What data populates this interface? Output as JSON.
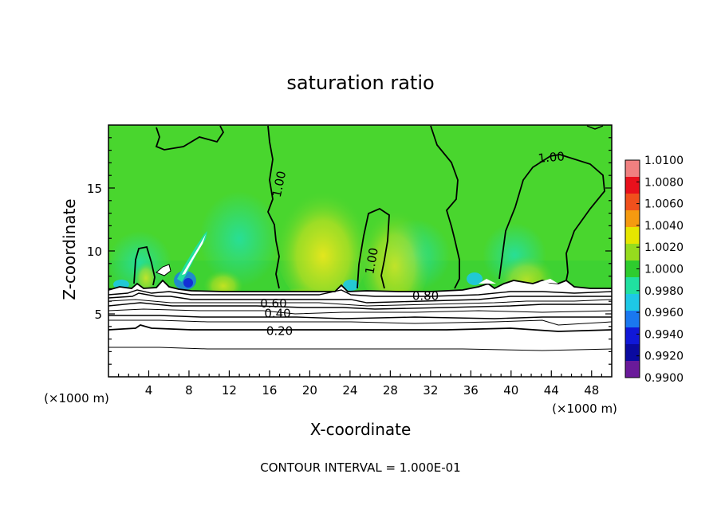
{
  "chart_data": {
    "type": "heatmap",
    "title": "saturation ratio",
    "xlabel": "X-coordinate",
    "ylabel": "Z-coordinate",
    "x_unit_left": "(×1000 m)",
    "x_unit_right": "(×1000 m)",
    "xlim": [
      0,
      50
    ],
    "ylim": [
      0,
      20
    ],
    "x_ticks": [
      4,
      8,
      12,
      16,
      20,
      24,
      28,
      32,
      36,
      40,
      44,
      48
    ],
    "y_ticks": [
      5,
      10,
      15
    ],
    "footer": "CONTOUR INTERVAL = 1.000E-01",
    "contour_labels": [
      {
        "text": "1.00",
        "x": 17.0,
        "y": 15.3,
        "rotate": -78
      },
      {
        "text": "1.00",
        "x": 44.0,
        "y": 17.4,
        "rotate": -5
      },
      {
        "text": "1.00",
        "x": 26.2,
        "y": 9.2,
        "rotate": -80
      },
      {
        "text": "0.80",
        "x": 31.5,
        "y": 6.4,
        "rotate": 0
      },
      {
        "text": "0.60",
        "x": 16.4,
        "y": 5.8,
        "rotate": 0
      },
      {
        "text": "0.40",
        "x": 16.8,
        "y": 5.0,
        "rotate": 0
      },
      {
        "text": "0.20",
        "x": 17.0,
        "y": 3.6,
        "rotate": 0
      }
    ],
    "colorbar": {
      "min": 0.99,
      "max": 1.01,
      "labels": [
        "1.0100",
        "1.0080",
        "1.0060",
        "1.0040",
        "1.0020",
        "1.0000",
        "0.9980",
        "0.9960",
        "0.9940",
        "0.9920",
        "0.9900"
      ],
      "colors": [
        "#f08080",
        "#e8101c",
        "#f0501c",
        "#f59a10",
        "#e6e600",
        "#96dc1e",
        "#2ecc2e",
        "#20e0a0",
        "#1ec8e6",
        "#1a78f0",
        "#1018d8",
        "#0a0aa0",
        "#6a1a9a"
      ]
    }
  }
}
